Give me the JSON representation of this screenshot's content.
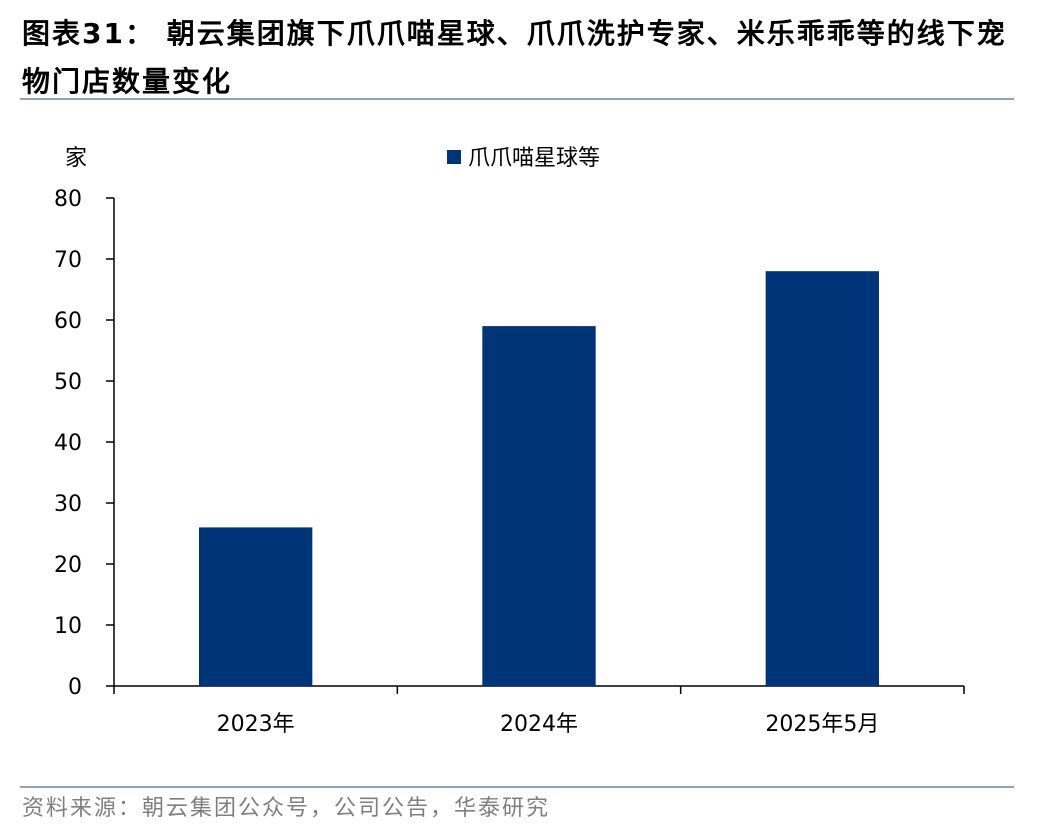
{
  "figure": {
    "title": "图表31： 朝云集团旗下爪爪喵星球、爪爪洗护专家、米乐乖乖等的线下宠物门店数量变化",
    "source": "资料来源：朝云集团公众号，公司公告，华泰研究"
  },
  "chart_data": {
    "type": "bar",
    "title": "",
    "ylabel": "家",
    "xlabel": "",
    "ylim": [
      0,
      80
    ],
    "yticks": [
      0,
      10,
      20,
      30,
      40,
      50,
      60,
      70,
      80
    ],
    "categories": [
      "2023年",
      "2024年",
      "2025年5月"
    ],
    "series": [
      {
        "name": "爪爪喵星球等",
        "values": [
          26,
          59,
          68
        ],
        "color": "#003478"
      }
    ],
    "legend": "top-center",
    "grid": false
  }
}
